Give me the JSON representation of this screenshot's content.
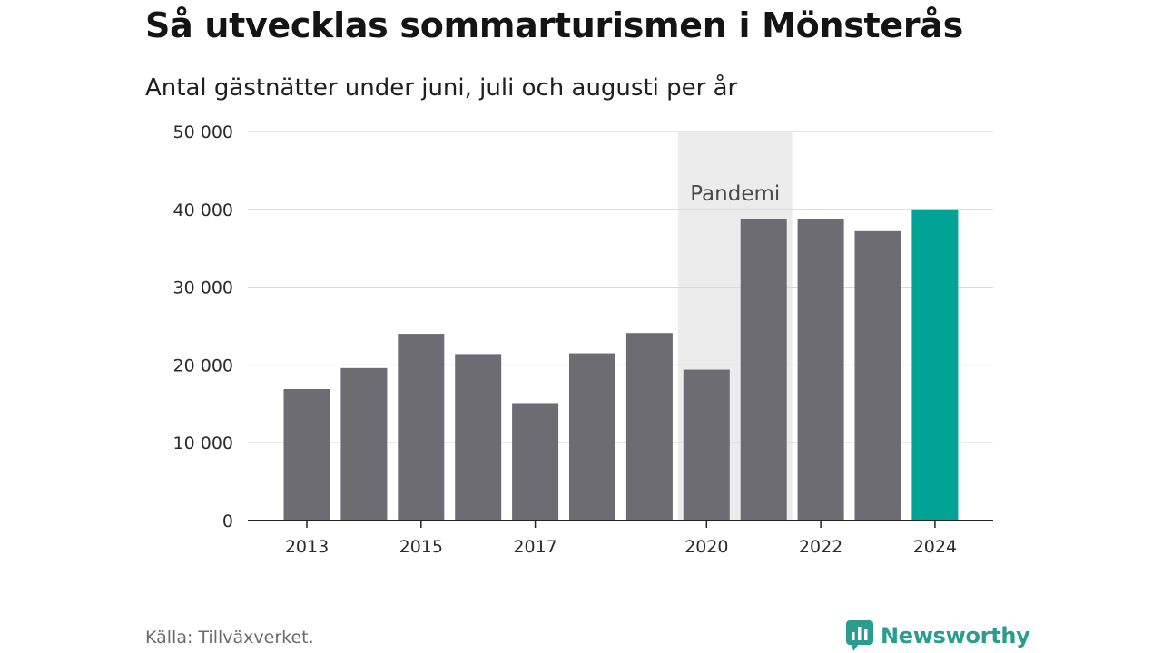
{
  "title": "Så utvecklas sommarturismen i Mönsterås",
  "subtitle": "Antal gästnätter under juni, juli och augusti per år",
  "source": "Källa: Tillväxverket.",
  "logo_text": "Newsworthy",
  "colors": {
    "bar": "#6d6c72",
    "highlight": "#00a396",
    "band": "#ececec",
    "grid": "#d9d9d9",
    "axis": "#222222",
    "text": "#2b2b2b",
    "brand": "#2a9d8f"
  },
  "chart_data": {
    "type": "bar",
    "categories": [
      "2013",
      "2014",
      "2015",
      "2016",
      "2017",
      "2018",
      "2019",
      "2020",
      "2021",
      "2022",
      "2023",
      "2024"
    ],
    "values": [
      16900,
      19600,
      24000,
      21400,
      15100,
      21500,
      24100,
      19400,
      38800,
      38800,
      37200,
      40000
    ],
    "x_tick_labels": [
      "2013",
      "2015",
      "2017",
      "2020",
      "2022",
      "2024"
    ],
    "y_ticks": [
      0,
      10000,
      20000,
      30000,
      40000,
      50000
    ],
    "y_tick_labels": [
      "0",
      "10 000",
      "20 000",
      "30 000",
      "40 000",
      "50 000"
    ],
    "ylim": [
      0,
      50000
    ],
    "highlight_category": "2024",
    "annotation": {
      "label": "Pandemi",
      "from": "2020",
      "to": "2021"
    },
    "grid": true,
    "xlabel": "",
    "ylabel": ""
  }
}
